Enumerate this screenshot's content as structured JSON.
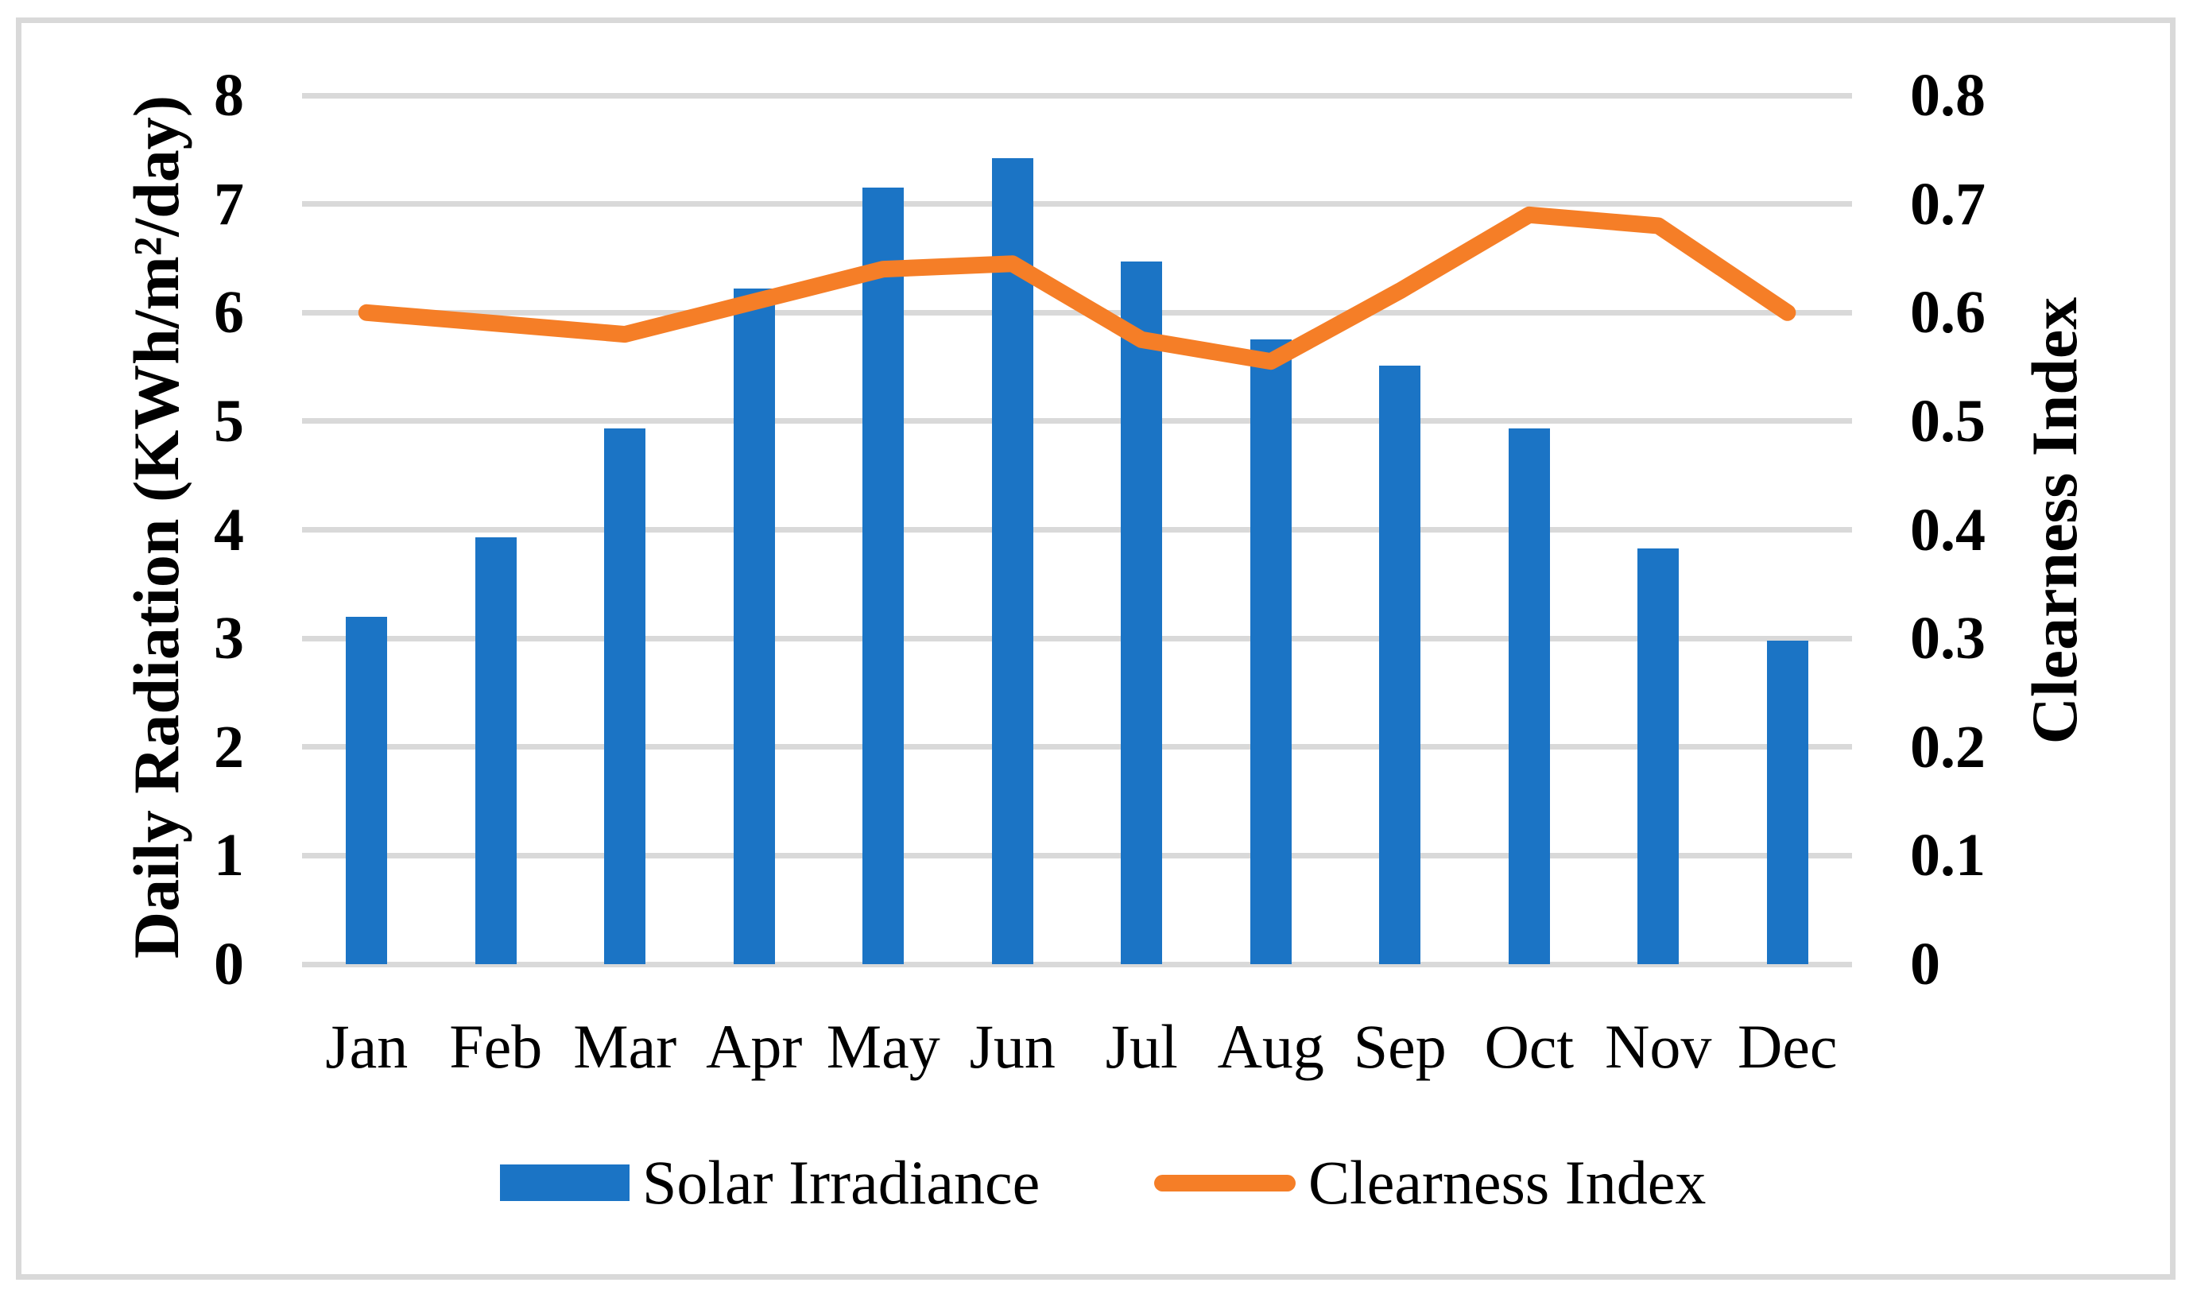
{
  "figure": {
    "background_color": "#FFFFFF",
    "frame_border_color": "#D9D9D9",
    "gridline_color": "#D9D9D9",
    "text_color": "#000000"
  },
  "chart_data": {
    "type": "bar",
    "subtype": "combo-bar-line-dual-axis",
    "categories": [
      "Jan",
      "Feb",
      "Mar",
      "Apr",
      "May",
      "Jun",
      "Jul",
      "Aug",
      "Sep",
      "Oct",
      "Nov",
      "Dec"
    ],
    "series": [
      {
        "name": "Solar Irradiance",
        "type": "bar",
        "axis": "left",
        "color": "#1B74C5",
        "values": [
          3.2,
          3.93,
          4.93,
          6.22,
          7.15,
          7.42,
          6.47,
          5.75,
          5.51,
          4.93,
          3.83,
          2.98
        ]
      },
      {
        "name": "Clearness Index",
        "type": "line",
        "axis": "right",
        "color": "#F57E27",
        "values": [
          0.6,
          0.59,
          0.58,
          0.61,
          0.64,
          0.645,
          0.575,
          0.555,
          0.62,
          0.69,
          0.68,
          0.6
        ]
      }
    ],
    "left_axis": {
      "label": "Daily Radiation (KWh/m²/day)",
      "min": 0,
      "max": 8,
      "ticks": [
        "8",
        "7",
        "6",
        "5",
        "4",
        "3",
        "2",
        "1",
        "0"
      ]
    },
    "right_axis": {
      "label": "Clearness Index",
      "min": 0,
      "max": 0.8,
      "ticks": [
        "0.8",
        "0.7",
        "0.6",
        "0.5",
        "0.4",
        "0.3",
        "0.2",
        "0.1",
        "0"
      ]
    },
    "grid": true,
    "legend_position": "bottom"
  },
  "legend": {
    "items": [
      {
        "label": "Solar Irradiance",
        "marker": "rectangle",
        "color": "#1B74C5"
      },
      {
        "label": "Clearness Index",
        "marker": "line",
        "color": "#F57E27"
      }
    ]
  }
}
